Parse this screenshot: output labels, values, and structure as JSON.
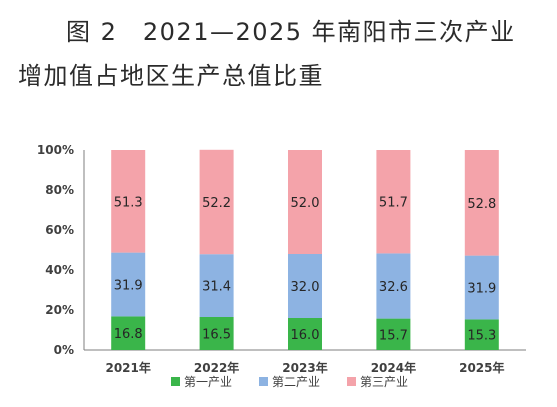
{
  "figure": {
    "title_line1": "图 2　2021—2025 年南阳市三次产业",
    "title_line2": "增加值占地区生产总值比重"
  },
  "chart_data": {
    "type": "bar",
    "stacked": true,
    "categories": [
      "2021年",
      "2022年",
      "2023年",
      "2024年",
      "2025年"
    ],
    "series": [
      {
        "name": "第一产业",
        "values": [
          16.8,
          16.5,
          16.0,
          15.7,
          15.3
        ],
        "labels": [
          "16.8",
          "16.5",
          "16.0",
          "15.7",
          "15.3"
        ],
        "color": "#3ab54a"
      },
      {
        "name": "第二产业",
        "values": [
          31.9,
          31.4,
          32.0,
          32.6,
          31.9
        ],
        "labels": [
          "31.9",
          "31.4",
          "32.0",
          "32.6",
          "31.9"
        ],
        "color": "#8db3e2"
      },
      {
        "name": "第三产业",
        "values": [
          51.3,
          52.2,
          52.0,
          51.7,
          52.8
        ],
        "labels": [
          "51.3",
          "52.2",
          "52.0",
          "51.7",
          "52.8"
        ],
        "color": "#f4a3aa"
      }
    ],
    "y_ticks": [
      "0%",
      "20%",
      "40%",
      "60%",
      "80%",
      "100%"
    ],
    "ylim": [
      0,
      100
    ],
    "grid": false,
    "legend": "bottom"
  }
}
